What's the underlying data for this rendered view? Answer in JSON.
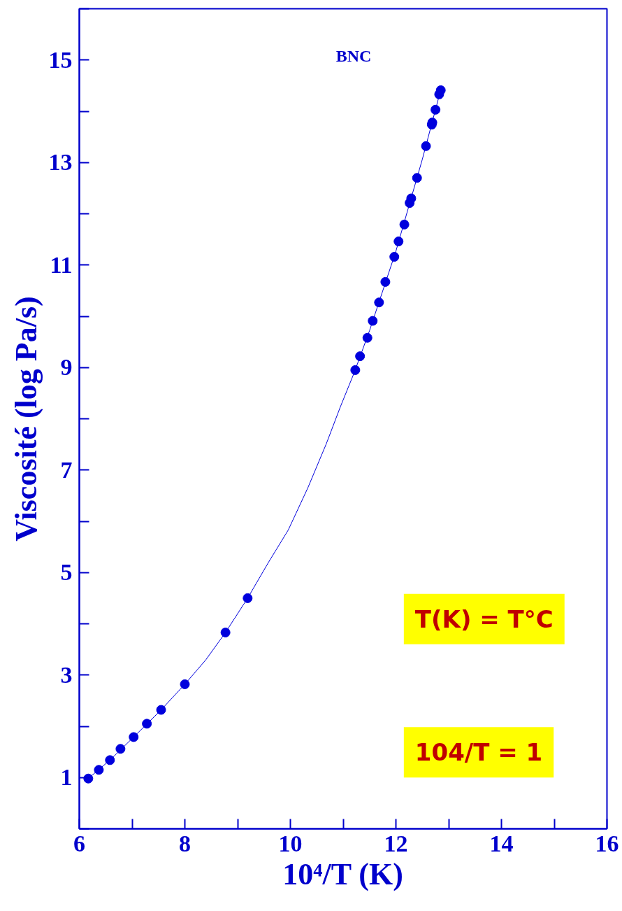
{
  "chart_data": {
    "type": "scatter",
    "xlabel": "10⁴/T (K)",
    "ylabel": "Viscosité (log Pa/s)",
    "xlim": [
      6,
      16
    ],
    "ylim": [
      0,
      16
    ],
    "xticks": [
      6,
      {
        "value": 7,
        "label": null
      },
      8,
      {
        "value": 9,
        "label": null
      },
      10,
      {
        "value": 11,
        "label": null
      },
      12,
      {
        "value": 13,
        "label": null
      },
      14,
      {
        "value": 15,
        "label": null
      },
      16
    ],
    "yticks": [
      {
        "value": 0,
        "label": null
      },
      1,
      {
        "value": 2,
        "label": null
      },
      3,
      {
        "value": 4,
        "label": null
      },
      5,
      {
        "value": 6,
        "label": null
      },
      7,
      {
        "value": 8,
        "label": null
      },
      9,
      {
        "value": 10,
        "label": null
      },
      11,
      {
        "value": 12,
        "label": null
      },
      13,
      {
        "value": 14,
        "label": null
      },
      15,
      {
        "value": 16,
        "label": null
      }
    ],
    "grid": false,
    "marker": "circle",
    "series": [
      {
        "color": "#0000dd",
        "x": [
          6.17,
          6.37,
          6.58,
          6.78,
          7.03,
          7.28,
          7.55,
          8.0,
          8.77,
          9.19,
          11.23,
          11.32,
          11.46,
          11.56,
          11.68,
          11.8,
          11.97,
          12.05,
          12.16,
          12.26,
          12.29,
          12.4,
          12.57,
          12.68,
          12.69,
          12.75,
          12.82,
          12.85
        ],
        "values": [
          0.98,
          1.15,
          1.34,
          1.56,
          1.79,
          2.05,
          2.32,
          2.82,
          3.83,
          4.5,
          8.95,
          9.22,
          9.58,
          9.91,
          10.27,
          10.67,
          11.16,
          11.46,
          11.79,
          12.21,
          12.3,
          12.7,
          13.32,
          13.74,
          13.78,
          14.03,
          14.33,
          14.41
        ]
      },
      {
        "type": "line",
        "color": "#0000dd",
        "line_style": "solid",
        "marker": "none",
        "x": [
          6.1,
          6.58,
          7.03,
          7.55,
          8.0,
          8.4,
          8.77,
          9.19,
          9.58,
          9.96,
          10.33,
          10.68,
          10.95,
          11.21,
          11.5,
          12.0,
          12.5,
          12.85
        ],
        "values": [
          0.92,
          1.34,
          1.79,
          2.32,
          2.82,
          3.3,
          3.83,
          4.5,
          5.19,
          5.83,
          6.65,
          7.51,
          8.24,
          8.9,
          9.72,
          11.27,
          13.06,
          14.42
        ]
      }
    ],
    "annotations": [
      "BNC",
      "T(K) = T°C",
      "104/T = 1"
    ]
  }
}
